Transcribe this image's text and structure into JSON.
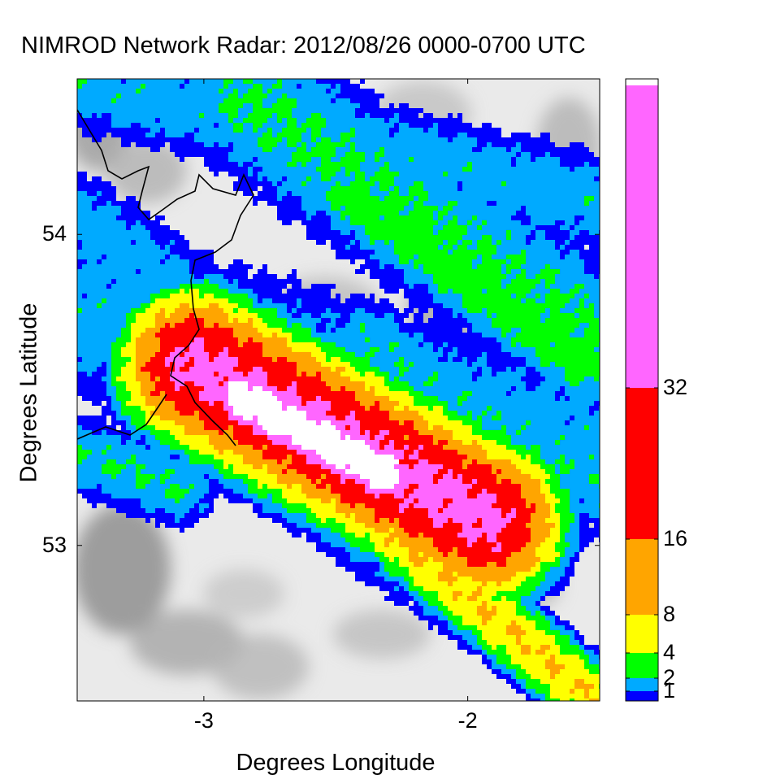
{
  "chart_data": {
    "type": "heatmap",
    "title": "NIMROD Network Radar: 2012/08/26 0000-0700 UTC",
    "xlabel": "Degrees Longitude",
    "ylabel": "Degrees Latitude",
    "xlim": [
      -3.48,
      -1.5
    ],
    "ylim": [
      52.5,
      54.5
    ],
    "x_ticks": [
      {
        "value": -3,
        "label": "-3"
      },
      {
        "value": -2,
        "label": "-2"
      }
    ],
    "y_ticks": [
      {
        "value": 53,
        "label": "53"
      },
      {
        "value": 54,
        "label": "54"
      }
    ],
    "colorbar": {
      "levels": [
        {
          "min": 0.5,
          "max": 1,
          "color": "#0000ff"
        },
        {
          "min": 1,
          "max": 2,
          "color": "#00aaff"
        },
        {
          "min": 2,
          "max": 4,
          "color": "#00ff00"
        },
        {
          "min": 4,
          "max": 8,
          "color": "#ffff00"
        },
        {
          "min": 8,
          "max": 16,
          "color": "#ffa500"
        },
        {
          "min": 16,
          "max": 32,
          "color": "#ff0000"
        },
        {
          "min": 32,
          "max": 64,
          "color": "#ff66ff"
        },
        {
          "min": 64,
          "max": 128,
          "color": "#ffffff"
        }
      ],
      "tick_labels": [
        "1",
        "2",
        "4",
        "8",
        "16",
        "32"
      ],
      "tick_values": [
        1,
        2,
        4,
        8,
        16,
        32
      ]
    },
    "features": {
      "background": "grey-shaded terrain elevation",
      "coastline": "black",
      "main_band": "intense rainfall band oriented north-west to south-east"
    }
  }
}
